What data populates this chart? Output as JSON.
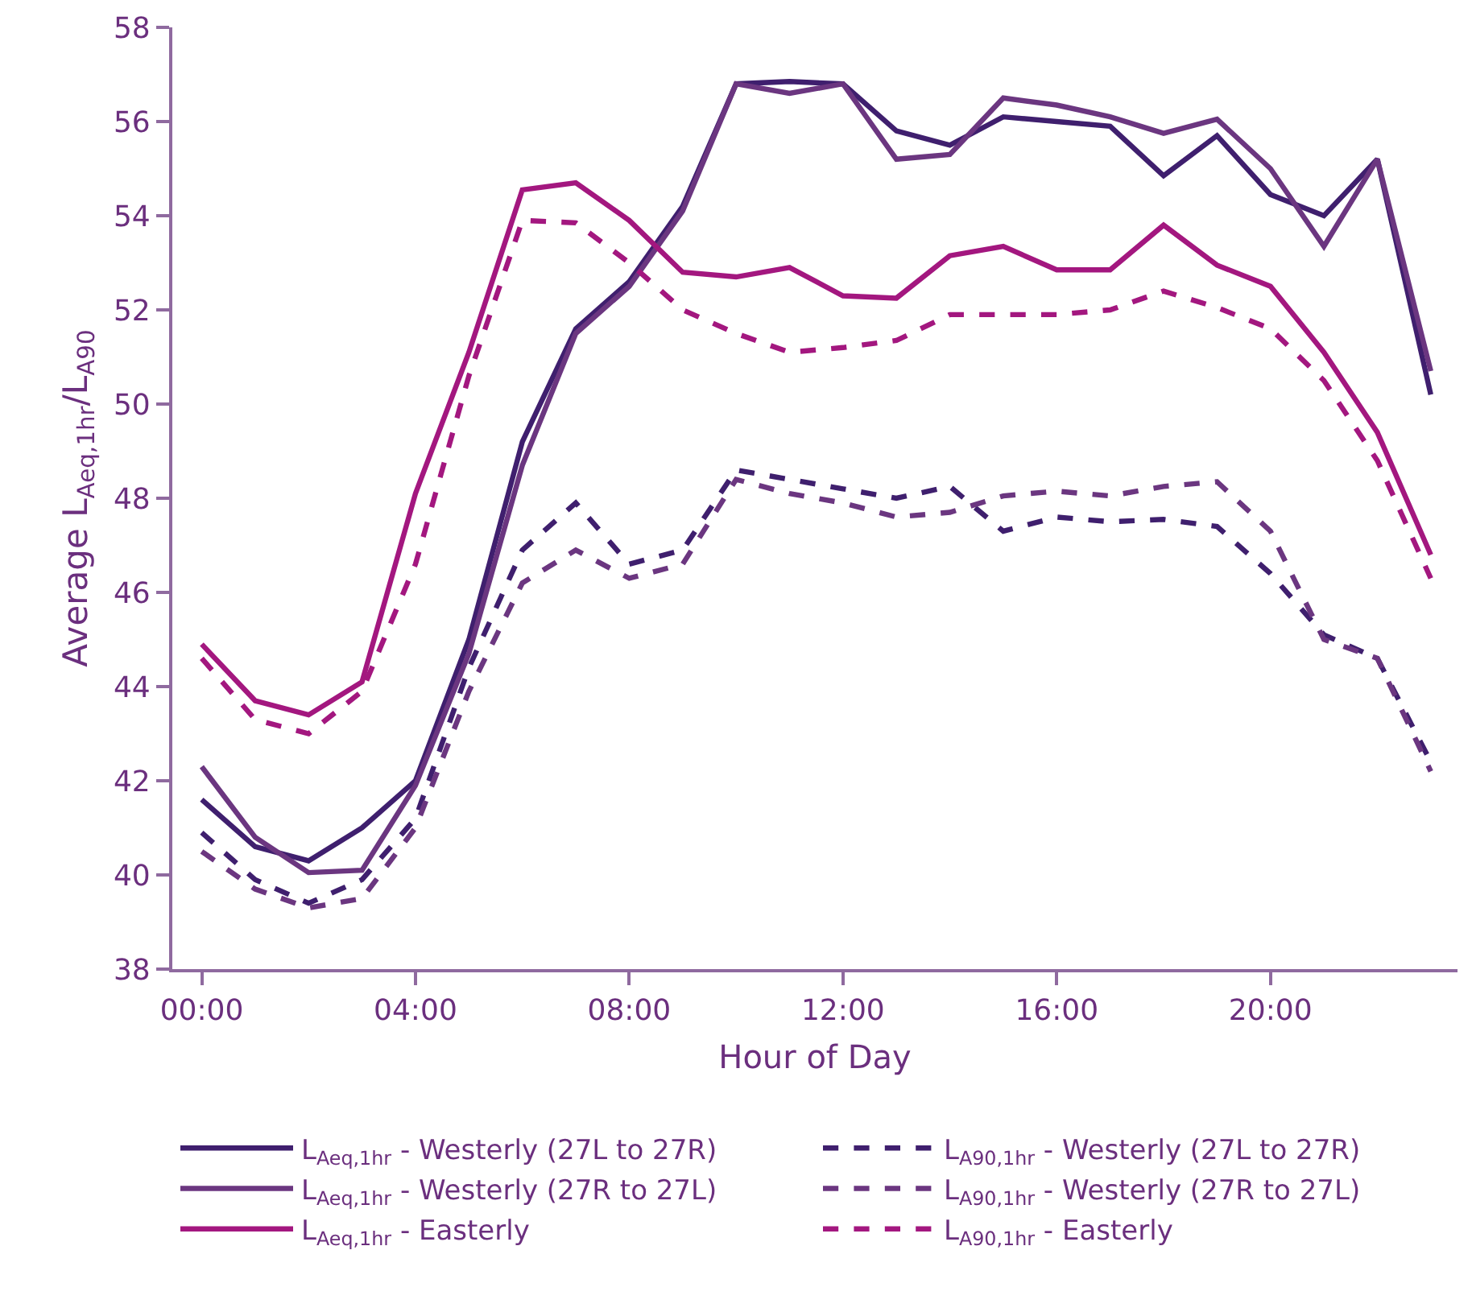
{
  "chart_data": {
    "type": "line",
    "xlabel": "Hour of Day",
    "ylabel": "Average L$_{Aeq,1hr}$/L$_{A90}$",
    "x": [
      0,
      1,
      2,
      3,
      4,
      5,
      6,
      7,
      8,
      9,
      10,
      11,
      12,
      13,
      14,
      15,
      16,
      17,
      18,
      19,
      20,
      21,
      22,
      23
    ],
    "xlim": [
      -0.55,
      23.5
    ],
    "xticks": [
      {
        "value": 0,
        "label": "00:00"
      },
      {
        "value": 4,
        "label": "04:00"
      },
      {
        "value": 8,
        "label": "08:00"
      },
      {
        "value": 12,
        "label": "12:00"
      },
      {
        "value": 16,
        "label": "16:00"
      },
      {
        "value": 20,
        "label": "20:00"
      }
    ],
    "ylim": [
      38,
      58
    ],
    "yticks": [
      38,
      40,
      42,
      44,
      46,
      48,
      50,
      52,
      54,
      56,
      58
    ],
    "grid": false,
    "legend": "bottom",
    "marker": "none",
    "series": [
      {
        "name": "L$_{Aeq,1hr}$ - Westerly (27L to 27R)",
        "color": "#3f1f6e",
        "line_style": "solid",
        "values": [
          41.6,
          40.6,
          40.3,
          41.0,
          42.0,
          45.0,
          49.2,
          51.6,
          52.6,
          54.2,
          56.8,
          56.85,
          56.8,
          55.8,
          55.5,
          56.1,
          56.0,
          55.9,
          54.85,
          55.7,
          54.45,
          54.0,
          55.2,
          50.2
        ]
      },
      {
        "name": "L$_{A90,1hr}$ - Westerly (27L to 27R)",
        "color": "#3f1f6e",
        "line_style": "dashed",
        "values": [
          40.9,
          39.9,
          39.4,
          39.9,
          41.2,
          44.4,
          46.9,
          47.9,
          46.6,
          46.9,
          48.6,
          48.4,
          48.2,
          48.0,
          48.25,
          47.3,
          47.6,
          47.5,
          47.55,
          47.4,
          46.4,
          45.1,
          44.6,
          42.4
        ]
      },
      {
        "name": "L$_{Aeq,1hr}$ - Westerly (27R to 27L)",
        "color": "#6b3680",
        "line_style": "solid",
        "values": [
          42.3,
          40.8,
          40.05,
          40.1,
          41.9,
          44.7,
          48.7,
          51.5,
          52.5,
          54.1,
          56.8,
          56.6,
          56.8,
          55.2,
          55.3,
          56.5,
          56.35,
          56.1,
          55.75,
          56.05,
          55.0,
          53.35,
          55.2,
          50.7
        ]
      },
      {
        "name": "L$_{A90,1hr}$ - Westerly (27R to 27L)",
        "color": "#6b3680",
        "line_style": "dashed",
        "values": [
          40.5,
          39.7,
          39.3,
          39.5,
          41.0,
          43.9,
          46.2,
          46.9,
          46.3,
          46.6,
          48.4,
          48.1,
          47.9,
          47.6,
          47.7,
          48.05,
          48.15,
          48.05,
          48.25,
          48.35,
          47.3,
          45.0,
          44.6,
          42.2
        ]
      },
      {
        "name": "L$_{Aeq,1hr}$ - Easterly",
        "color": "#a3177f",
        "line_style": "solid",
        "values": [
          44.9,
          43.7,
          43.4,
          44.1,
          48.1,
          51.1,
          54.55,
          54.7,
          53.9,
          52.8,
          52.7,
          52.9,
          52.3,
          52.25,
          53.15,
          53.35,
          52.85,
          52.85,
          53.8,
          52.95,
          52.5,
          51.1,
          49.4,
          46.8
        ]
      },
      {
        "name": "L$_{A90,1hr}$ - Easterly",
        "color": "#a3177f",
        "line_style": "dashed",
        "values": [
          44.6,
          43.3,
          43.0,
          43.9,
          46.6,
          50.6,
          53.9,
          53.85,
          53.0,
          52.0,
          51.5,
          51.1,
          51.2,
          51.35,
          51.9,
          51.9,
          51.9,
          52.0,
          52.4,
          52.05,
          51.6,
          50.5,
          48.8,
          46.3
        ]
      }
    ]
  }
}
